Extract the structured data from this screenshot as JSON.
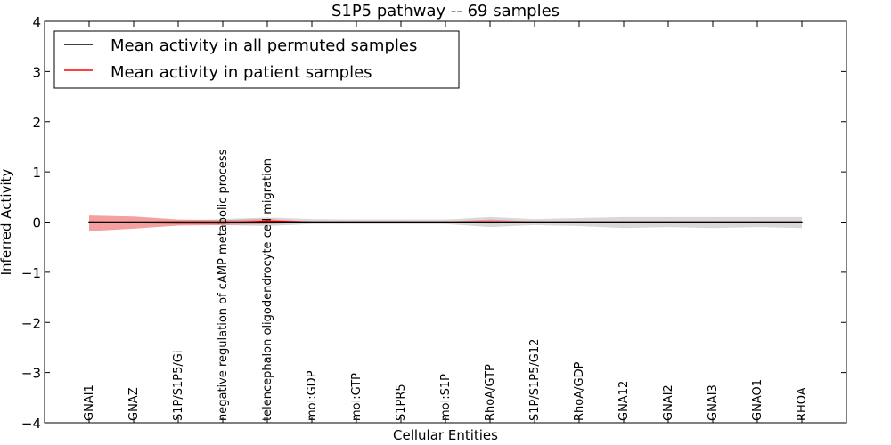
{
  "chart_data": {
    "type": "line",
    "title": "S1P5 pathway -- 69 samples",
    "xlabel": "Cellular Entities",
    "ylabel": "Inferred Activity",
    "ylim": [
      -4,
      4
    ],
    "yticks": [
      "−4",
      "−3",
      "−2",
      "−1",
      "0",
      "1",
      "2",
      "3",
      "4"
    ],
    "ytick_values": [
      -4,
      -3,
      -2,
      -1,
      0,
      1,
      2,
      3,
      4
    ],
    "categories": [
      "GNAI1",
      "GNAZ",
      "S1P/S1P5/Gi",
      "negative regulation of cAMP metabolic process",
      "telencephalon oligodendrocyte cell migration",
      "mol:GDP",
      "mol:GTP",
      "S1PR5",
      "mol:S1P",
      "RhoA/GTP",
      "S1P/S1P5/G12",
      "RhoA/GDP",
      "GNA12",
      "GNAI2",
      "GNAI3",
      "GNAO1",
      "RHOA"
    ],
    "legend_position": "top-left",
    "series": [
      {
        "name": "Mean activity in all permuted samples",
        "color": "#000000",
        "band_color": "#c8c8c8",
        "values": [
          0,
          0,
          0,
          0,
          0,
          0,
          0,
          0,
          0,
          0,
          0,
          0,
          0,
          0,
          0,
          0,
          0
        ],
        "band_upper": [
          0.02,
          0.02,
          0.03,
          0.06,
          0.09,
          0.06,
          0.05,
          0.05,
          0.05,
          0.1,
          0.06,
          0.08,
          0.1,
          0.1,
          0.1,
          0.1,
          0.1
        ],
        "band_lower": [
          -0.02,
          -0.02,
          -0.03,
          -0.06,
          -0.08,
          -0.04,
          -0.04,
          -0.04,
          -0.04,
          -0.1,
          -0.06,
          -0.08,
          -0.12,
          -0.1,
          -0.12,
          -0.1,
          -0.12
        ]
      },
      {
        "name": "Mean activity in patient samples",
        "color": "#ff0000",
        "band_color": "#f08080",
        "values": [
          0,
          -0.01,
          -0.02,
          -0.02,
          0.02,
          0,
          0,
          0,
          0,
          0,
          0,
          0,
          0,
          0,
          0,
          0,
          0
        ],
        "band_upper": [
          0.13,
          0.11,
          0.05,
          0.04,
          0.06,
          0.01,
          0.01,
          0.01,
          0.01,
          0.05,
          0.01,
          0.01,
          0.01,
          0.01,
          0.01,
          0.01,
          0.01
        ],
        "band_lower": [
          -0.18,
          -0.13,
          -0.07,
          -0.06,
          -0.04,
          -0.01,
          -0.01,
          -0.01,
          -0.01,
          -0.03,
          -0.01,
          -0.01,
          -0.01,
          -0.01,
          -0.01,
          -0.01,
          -0.01
        ]
      }
    ]
  }
}
